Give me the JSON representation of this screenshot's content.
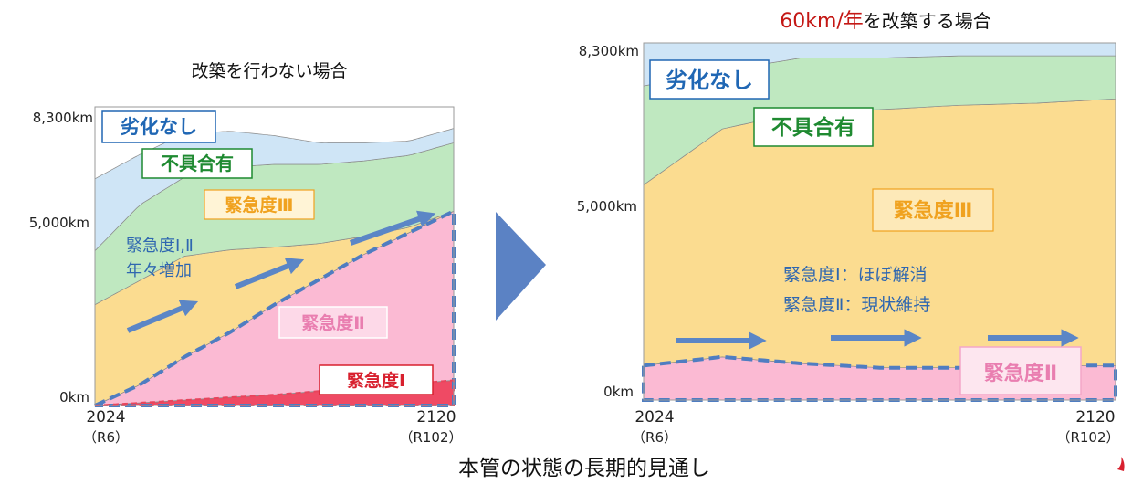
{
  "page": {
    "caption": "本管の状態の長期的見通し"
  },
  "colors": {
    "none": "#cfe5f6",
    "fault": "#bfe8c0",
    "level3": "#fbdc90",
    "level2": "#fbbad3",
    "level1": "#ef4a64",
    "level2_border": "#4f7dc1",
    "arrow": "#5b86c6",
    "big_arrow": "#5b82c4",
    "label_blue": "#2067b4",
    "label_green": "#1f8a31",
    "label_orange": "#f0a21f",
    "label_pink": "#e97eb0",
    "label_red": "#d8202e",
    "title_red": "#c41815"
  },
  "chart_data": [
    {
      "type": "area",
      "title": "改築を行わない場合",
      "x_ticks": [
        {
          "year": "2024",
          "era": "（R6）"
        },
        {
          "year": "2120",
          "era": "（R102）"
        }
      ],
      "y_ticks": [
        "8,300km",
        "5,000km",
        "0km"
      ],
      "xlim": [
        2024,
        2120
      ],
      "ylim": [
        0,
        8300
      ],
      "series": [
        {
          "name": "緊急度Ⅰ",
          "key": "level1",
          "x": [
            2024,
            2048,
            2072,
            2096,
            2120
          ],
          "values": [
            0,
            150,
            300,
            500,
            700
          ]
        },
        {
          "name": "緊急度Ⅱ",
          "key": "level2",
          "x": [
            2024,
            2036,
            2048,
            2060,
            2072,
            2084,
            2096,
            2108,
            2120
          ],
          "values": [
            0,
            500,
            1200,
            1800,
            2500,
            3100,
            3700,
            4200,
            4700
          ]
        },
        {
          "name": "緊急度Ⅲ",
          "key": "level3",
          "x": [
            2024,
            2036,
            2048,
            2060,
            2072,
            2084,
            2096,
            2108,
            2120
          ],
          "values": [
            2800,
            2900,
            2800,
            2300,
            1600,
            1000,
            500,
            150,
            0
          ]
        },
        {
          "name": "不具合有",
          "key": "fault",
          "x": [
            2024,
            2036,
            2048,
            2060,
            2072,
            2084,
            2096,
            2108,
            2120
          ],
          "values": [
            1500,
            2100,
            2200,
            2300,
            2300,
            2200,
            2100,
            2000,
            1900
          ]
        },
        {
          "name": "劣化なし",
          "key": "none",
          "x": [
            2024,
            2036,
            2048,
            2060,
            2072,
            2084,
            2096,
            2108,
            2120
          ],
          "values": [
            2000,
            1400,
            1200,
            1000,
            800,
            600,
            500,
            400,
            400
          ]
        }
      ],
      "annotations": [
        "緊急度Ⅰ,Ⅱ",
        "年々増加"
      ]
    },
    {
      "type": "area",
      "title_highlight": "60km/年",
      "title_rest": "を改築する場合",
      "x_ticks": [
        {
          "year": "2024",
          "era": "（R6）"
        },
        {
          "year": "2120",
          "era": "（R102）"
        }
      ],
      "y_ticks": [
        "8,300km",
        "5,000km",
        "0km"
      ],
      "xlim": [
        2024,
        2120
      ],
      "ylim": [
        0,
        8300
      ],
      "series": [
        {
          "name": "緊急度Ⅱ",
          "key": "level2",
          "x": [
            2024,
            2040,
            2056,
            2072,
            2088,
            2104,
            2120
          ],
          "values": [
            800,
            1000,
            850,
            750,
            750,
            800,
            800
          ]
        },
        {
          "name": "緊急度Ⅲ",
          "key": "level3",
          "x": [
            2024,
            2040,
            2056,
            2072,
            2088,
            2104,
            2120
          ],
          "values": [
            4200,
            5300,
            5850,
            6000,
            6100,
            6100,
            6200
          ]
        },
        {
          "name": "不具合有",
          "key": "fault",
          "x": [
            2024,
            2040,
            2056,
            2072,
            2088,
            2104,
            2120
          ],
          "values": [
            2300,
            1350,
            1250,
            1200,
            1150,
            1100,
            1000
          ]
        },
        {
          "name": "劣化なし",
          "key": "none",
          "x": [
            2024,
            2040,
            2056,
            2072,
            2088,
            2104,
            2120
          ],
          "values": [
            1000,
            650,
            350,
            350,
            300,
            300,
            300
          ]
        }
      ],
      "annotations": [
        "緊急度Ⅰ：ほぼ解消",
        "緊急度Ⅱ：現状維持"
      ]
    }
  ]
}
